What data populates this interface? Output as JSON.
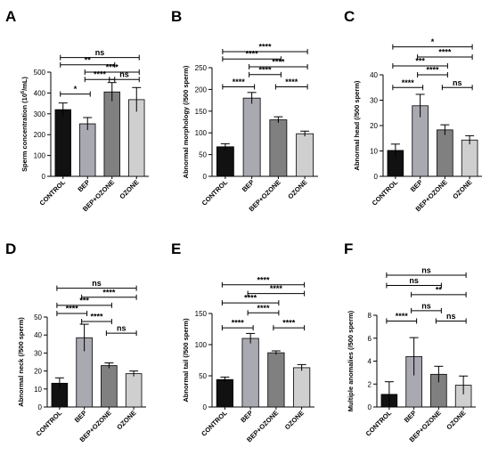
{
  "chart_data": [
    {
      "type": "bar",
      "panel": "A",
      "ylabel_main": "Sperm concentration (10",
      "ylabel_sup": "6",
      "ylabel_tail": "/mL)",
      "categories": [
        "CONTROL",
        "BEP",
        "BEP+OZONE",
        "OZONE"
      ],
      "values": [
        320,
        252,
        405,
        368
      ],
      "errors": [
        32,
        30,
        45,
        58
      ],
      "ylim": [
        0,
        500
      ],
      "yticks": [
        0,
        100,
        200,
        300,
        400,
        500
      ],
      "colors": [
        "#111111",
        "#a9a9b1",
        "#808080",
        "#cfcfcf"
      ],
      "comparisons": [
        {
          "from": 0,
          "to": 3,
          "label": "ns",
          "y": 570
        },
        {
          "from": 0,
          "to": 2,
          "label": "**",
          "y": 535
        },
        {
          "from": 1,
          "to": 3,
          "label": "****",
          "y": 500
        },
        {
          "from": 1,
          "to": 2,
          "label": "****",
          "y": 465
        },
        {
          "from": 2,
          "to": 3,
          "label": "ns",
          "y": 465
        },
        {
          "from": 0,
          "to": 1,
          "label": "*",
          "y": 395
        }
      ]
    },
    {
      "type": "bar",
      "panel": "B",
      "ylabel_main": "Abnormal morphology (/500 sperm)",
      "categories": [
        "CONTROL",
        "BEP",
        "BEP+OZONE",
        "OZONE"
      ],
      "values": [
        68,
        180,
        130,
        98
      ],
      "errors": [
        7,
        13,
        7,
        6
      ],
      "ylim": [
        0,
        250
      ],
      "yticks": [
        0,
        50,
        100,
        150,
        200,
        250
      ],
      "colors": [
        "#111111",
        "#a9a9b1",
        "#808080",
        "#cfcfcf"
      ],
      "comparisons": [
        {
          "from": 0,
          "to": 3,
          "label": "****",
          "y": 287
        },
        {
          "from": 0,
          "to": 2,
          "label": "****",
          "y": 270
        },
        {
          "from": 1,
          "to": 3,
          "label": "****",
          "y": 252
        },
        {
          "from": 1,
          "to": 2,
          "label": "****",
          "y": 234
        },
        {
          "from": 0,
          "to": 1,
          "label": "****",
          "y": 206
        },
        {
          "from": 2,
          "to": 3,
          "label": "****",
          "y": 206
        }
      ]
    },
    {
      "type": "bar",
      "panel": "C",
      "ylabel_main": "Abnormal head (/500 sperm)",
      "categories": [
        "CONTROL",
        "BEP",
        "BEP+OZONE",
        "OZONE"
      ],
      "values": [
        10.2,
        27.8,
        18.3,
        14.3
      ],
      "errors": [
        2.5,
        4.5,
        2.0,
        1.7
      ],
      "ylim": [
        0,
        40
      ],
      "yticks": [
        0,
        10,
        20,
        30,
        40
      ],
      "colors": [
        "#111111",
        "#a9a9b1",
        "#808080",
        "#cfcfcf"
      ],
      "comparisons": [
        {
          "from": 0,
          "to": 3,
          "label": "*",
          "y": 51
        },
        {
          "from": 1,
          "to": 3,
          "label": "****",
          "y": 47
        },
        {
          "from": 0,
          "to": 2,
          "label": "***",
          "y": 43.5
        },
        {
          "from": 1,
          "to": 2,
          "label": "****",
          "y": 40
        },
        {
          "from": 0,
          "to": 1,
          "label": "****",
          "y": 35
        },
        {
          "from": 2,
          "to": 3,
          "label": "ns",
          "y": 35
        }
      ]
    },
    {
      "type": "bar",
      "panel": "D",
      "ylabel_main": "Abnormal neck (/500 sperm)",
      "categories": [
        "CONTROL",
        "BEP",
        "BEP+OZONE",
        "OZONE"
      ],
      "values": [
        13.2,
        38.5,
        23.0,
        18.5
      ],
      "errors": [
        3.0,
        7.5,
        1.5,
        1.5
      ],
      "ylim": [
        0,
        50
      ],
      "yticks": [
        0,
        10,
        20,
        30,
        40,
        50
      ],
      "colors": [
        "#111111",
        "#a9a9b1",
        "#808080",
        "#cfcfcf"
      ],
      "comparisons": [
        {
          "from": 0,
          "to": 3,
          "label": "ns",
          "y": 66
        },
        {
          "from": 1,
          "to": 3,
          "label": "****",
          "y": 61
        },
        {
          "from": 0,
          "to": 2,
          "label": "***",
          "y": 56.5
        },
        {
          "from": 0,
          "to": 1,
          "label": "****",
          "y": 52
        },
        {
          "from": 1,
          "to": 2,
          "label": "****",
          "y": 47.5
        },
        {
          "from": 2,
          "to": 3,
          "label": "ns",
          "y": 41
        }
      ]
    },
    {
      "type": "bar",
      "panel": "E",
      "ylabel_main": "Abnormal tail (/500 sperm)",
      "categories": [
        "CONTROL",
        "BEP",
        "BEP+OZONE",
        "OZONE"
      ],
      "values": [
        44,
        110,
        87,
        63
      ],
      "errors": [
        4,
        8,
        3,
        5
      ],
      "ylim": [
        0,
        150
      ],
      "yticks": [
        0,
        50,
        100,
        150
      ],
      "colors": [
        "#111111",
        "#a9a9b1",
        "#808080",
        "#cfcfcf"
      ],
      "comparisons": [
        {
          "from": 0,
          "to": 3,
          "label": "****",
          "y": 196
        },
        {
          "from": 1,
          "to": 3,
          "label": "****",
          "y": 182
        },
        {
          "from": 0,
          "to": 2,
          "label": "****",
          "y": 167
        },
        {
          "from": 1,
          "to": 2,
          "label": "****",
          "y": 151
        },
        {
          "from": 0,
          "to": 1,
          "label": "****",
          "y": 127
        },
        {
          "from": 2,
          "to": 3,
          "label": "****",
          "y": 127
        }
      ]
    },
    {
      "type": "bar",
      "panel": "F",
      "ylabel_main": "Multiple anomalies (/500 sperm)",
      "categories": [
        "CONTROL",
        "BEP",
        "BEP+OZONE",
        "OZONE"
      ],
      "values": [
        1.1,
        4.4,
        2.85,
        1.9
      ],
      "errors": [
        1.1,
        1.65,
        0.7,
        0.8
      ],
      "ylim": [
        0,
        8
      ],
      "yticks": [
        0,
        2,
        4,
        6,
        8
      ],
      "colors": [
        "#111111",
        "#a9a9b1",
        "#808080",
        "#cfcfcf"
      ],
      "comparisons": [
        {
          "from": 0,
          "to": 3,
          "label": "ns",
          "y": 11.5
        },
        {
          "from": 0,
          "to": 2,
          "label": "ns",
          "y": 10.6
        },
        {
          "from": 1,
          "to": 3,
          "label": "**",
          "y": 9.8
        },
        {
          "from": 1,
          "to": 2,
          "label": "ns",
          "y": 8.4
        },
        {
          "from": 0,
          "to": 1,
          "label": "****",
          "y": 7.5
        },
        {
          "from": 2,
          "to": 3,
          "label": "ns",
          "y": 7.5
        }
      ]
    }
  ]
}
